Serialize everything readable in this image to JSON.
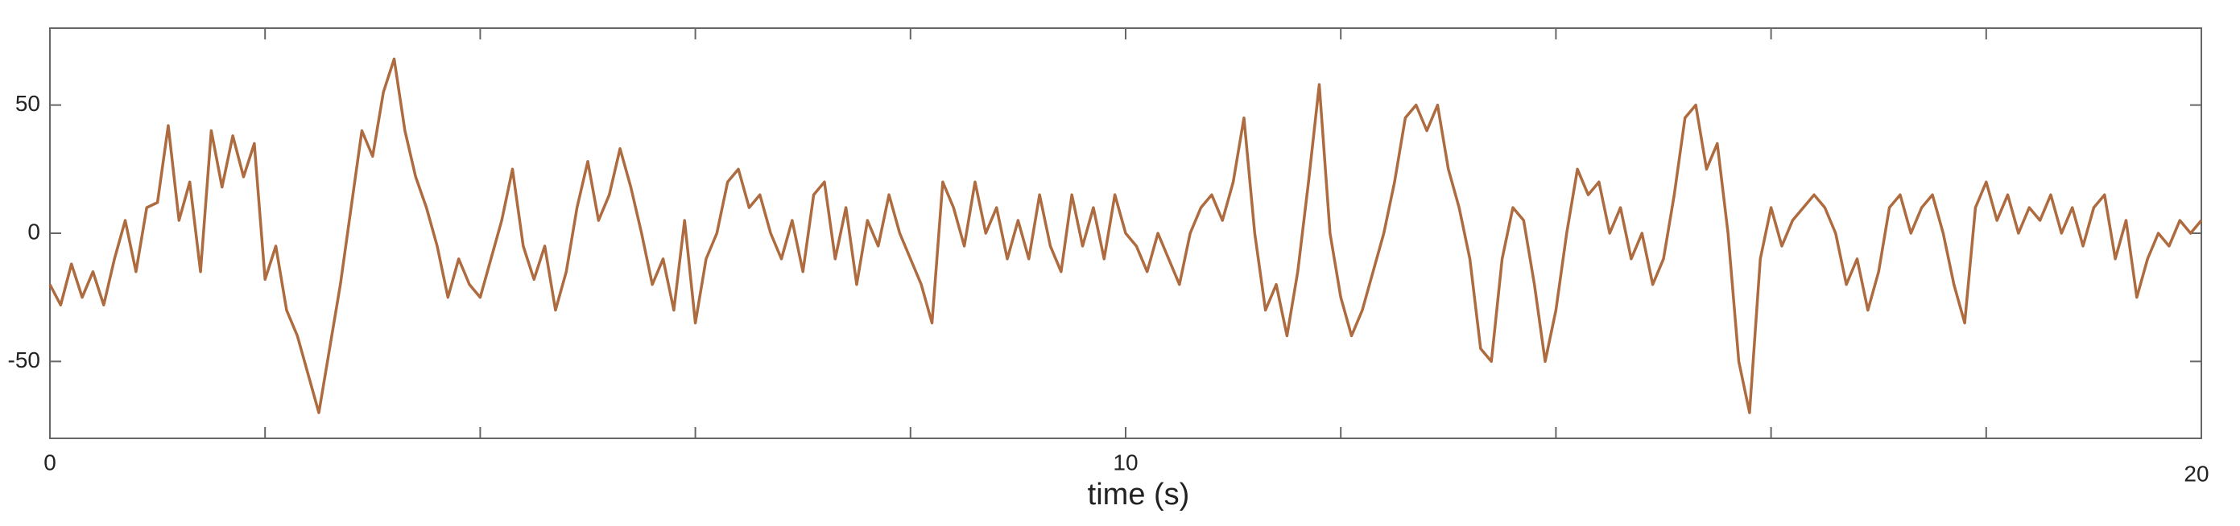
{
  "chart_data": {
    "type": "line",
    "xlabel": "time (s)",
    "x": [
      0,
      0.1,
      0.2,
      0.3,
      0.4,
      0.5,
      0.6,
      0.7,
      0.8,
      0.9,
      1,
      1.1,
      1.2,
      1.3,
      1.4,
      1.5,
      1.6,
      1.7,
      1.8,
      1.9,
      2,
      2.1,
      2.2,
      2.3,
      2.4,
      2.5,
      2.6,
      2.7,
      2.8,
      2.9,
      3,
      3.1,
      3.2,
      3.3,
      3.4,
      3.5,
      3.6,
      3.7,
      3.8,
      3.9,
      4,
      4.1,
      4.2,
      4.3,
      4.4,
      4.5,
      4.6,
      4.7,
      4.8,
      4.9,
      5,
      5.1,
      5.2,
      5.3,
      5.4,
      5.5,
      5.6,
      5.7,
      5.8,
      5.9,
      6,
      6.1,
      6.2,
      6.3,
      6.4,
      6.5,
      6.6,
      6.7,
      6.8,
      6.9,
      7,
      7.1,
      7.2,
      7.3,
      7.4,
      7.5,
      7.6,
      7.7,
      7.8,
      7.9,
      8,
      8.1,
      8.2,
      8.3,
      8.4,
      8.5,
      8.6,
      8.7,
      8.8,
      8.9,
      9,
      9.1,
      9.2,
      9.3,
      9.4,
      9.5,
      9.6,
      9.7,
      9.8,
      9.9,
      10,
      10.1,
      10.2,
      10.3,
      10.4,
      10.5,
      10.6,
      10.7,
      10.8,
      10.9,
      11,
      11.1,
      11.2,
      11.3,
      11.4,
      11.5,
      11.6,
      11.7,
      11.8,
      11.9,
      12,
      12.1,
      12.2,
      12.3,
      12.4,
      12.5,
      12.6,
      12.7,
      12.8,
      12.9,
      13,
      13.1,
      13.2,
      13.3,
      13.4,
      13.5,
      13.6,
      13.7,
      13.8,
      13.9,
      14,
      14.1,
      14.2,
      14.3,
      14.4,
      14.5,
      14.6,
      14.7,
      14.8,
      14.9,
      15,
      15.1,
      15.2,
      15.3,
      15.4,
      15.5,
      15.6,
      15.7,
      15.8,
      15.9,
      16,
      16.1,
      16.2,
      16.3,
      16.4,
      16.5,
      16.6,
      16.7,
      16.8,
      16.9,
      17,
      17.1,
      17.2,
      17.3,
      17.4,
      17.5,
      17.6,
      17.7,
      17.8,
      17.9,
      18,
      18.1,
      18.2,
      18.3,
      18.4,
      18.5,
      18.6,
      18.7,
      18.8,
      18.9,
      19,
      19.1,
      19.2,
      19.3,
      19.4,
      19.5,
      19.6,
      19.7,
      19.8,
      19.9,
      20
    ],
    "series": [
      {
        "color": "#ad6b3f",
        "values": [
          -20,
          -28,
          -12,
          -25,
          -15,
          -28,
          -10,
          5,
          -15,
          10,
          12,
          42,
          5,
          20,
          -15,
          40,
          18,
          38,
          22,
          35,
          -18,
          -5,
          -30,
          -40,
          -55,
          -70,
          -45,
          -20,
          10,
          40,
          30,
          55,
          68,
          40,
          22,
          10,
          -5,
          -25,
          -10,
          -20,
          -25,
          -10,
          5,
          25,
          -5,
          -18,
          -5,
          -30,
          -15,
          10,
          28,
          5,
          15,
          33,
          18,
          0,
          -20,
          -10,
          -30,
          5,
          -35,
          -10,
          0,
          20,
          25,
          10,
          15,
          0,
          -10,
          5,
          -15,
          15,
          20,
          -10,
          10,
          -20,
          5,
          -5,
          15,
          0,
          -10,
          -20,
          -35,
          20,
          10,
          -5,
          20,
          0,
          10,
          -10,
          5,
          -10,
          15,
          -5,
          -15,
          15,
          -5,
          10,
          -10,
          15,
          0,
          -5,
          -15,
          0,
          -10,
          -20,
          0,
          10,
          15,
          5,
          20,
          45,
          0,
          -30,
          -20,
          -40,
          -15,
          20,
          58,
          0,
          -25,
          -40,
          -30,
          -15,
          0,
          20,
          45,
          50,
          40,
          50,
          25,
          10,
          -10,
          -45,
          -50,
          -10,
          10,
          5,
          -20,
          -50,
          -30,
          0,
          25,
          15,
          20,
          0,
          10,
          -10,
          0,
          -20,
          -10,
          15,
          45,
          50,
          25,
          35,
          0,
          -50,
          -70,
          -10,
          10,
          -5,
          5,
          10,
          15,
          10,
          0,
          -20,
          -10,
          -30,
          -15,
          10,
          15,
          0,
          10,
          15,
          0,
          -20,
          -35,
          10,
          20,
          5,
          15,
          0,
          10,
          5,
          15,
          0,
          10,
          -5,
          10,
          15,
          -10,
          5,
          -25,
          -10,
          0,
          -5,
          5,
          0,
          5
        ]
      }
    ],
    "xlim": [
      0,
      20
    ],
    "xticks": [
      0,
      10,
      20
    ],
    "xminorticks": [
      2,
      4,
      6,
      8,
      12,
      14,
      16,
      18
    ],
    "ylim": [
      -80,
      80
    ],
    "yticks": [
      -50,
      0,
      50
    ]
  }
}
